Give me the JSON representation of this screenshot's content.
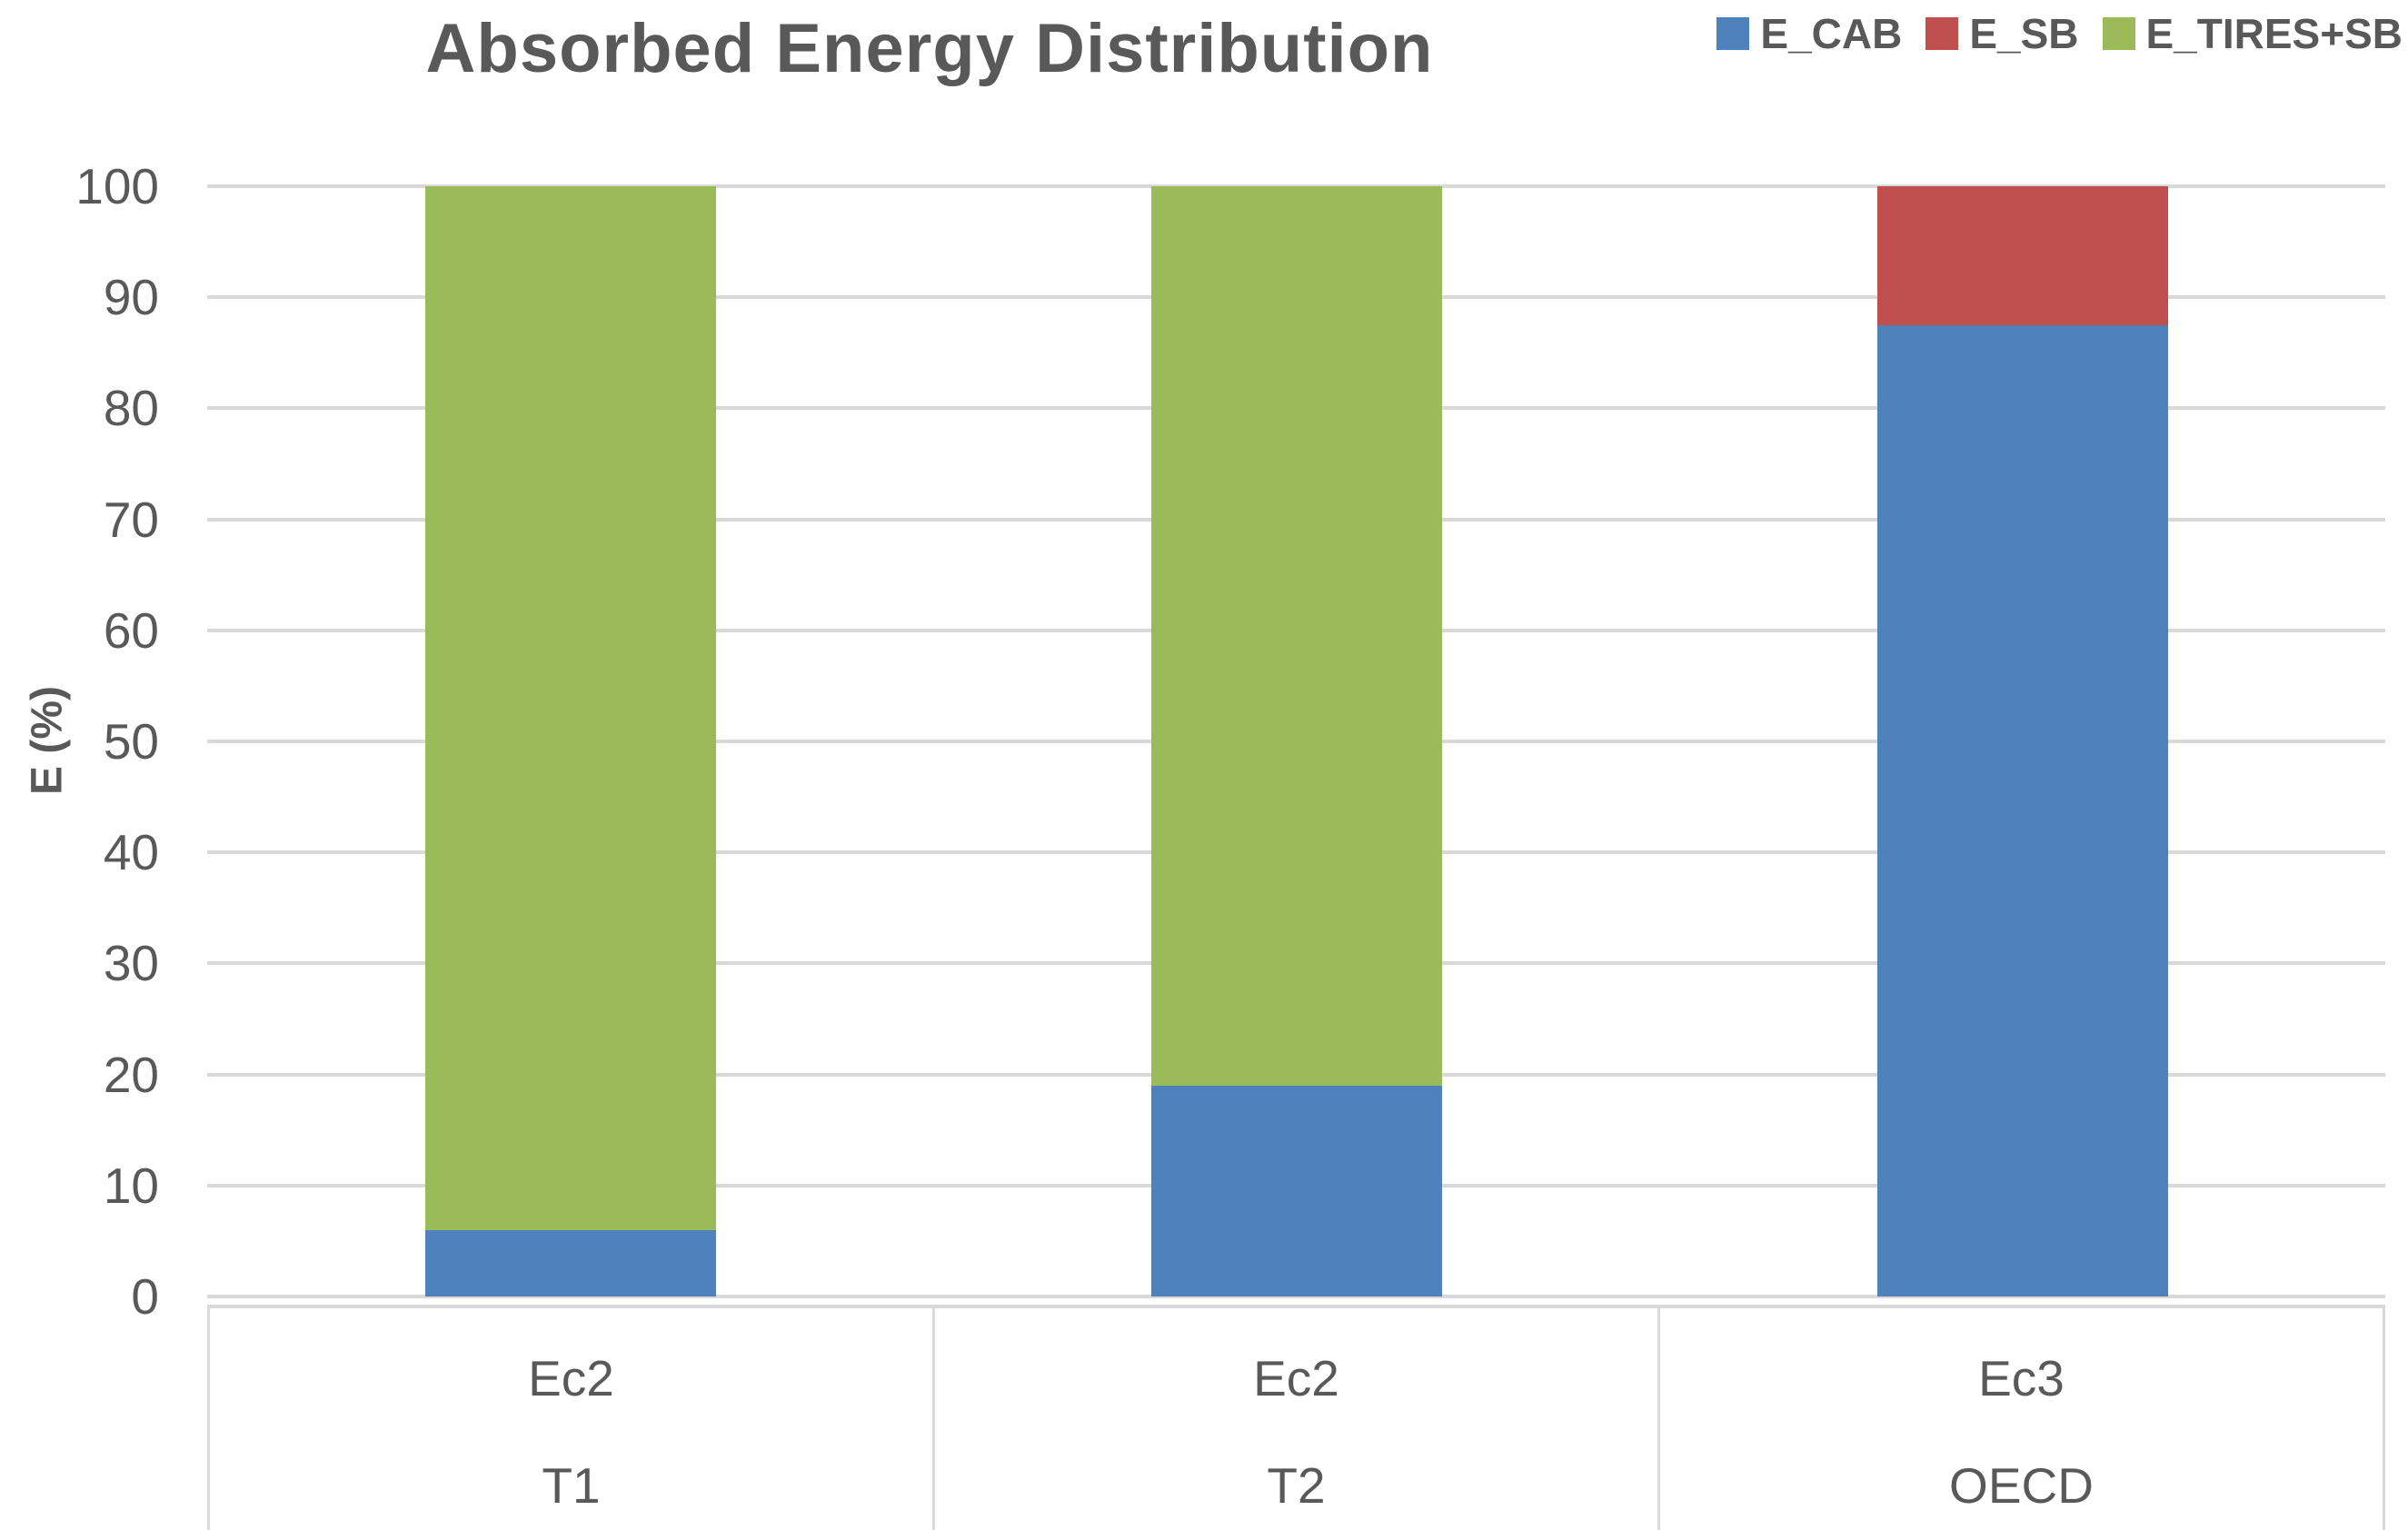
{
  "chart_data": {
    "type": "bar",
    "stacked": true,
    "title": "Absorbed Energy Distribution",
    "ylabel": "E (%)",
    "xlabel": "",
    "ylim": [
      0,
      100
    ],
    "ytick_interval": 10,
    "yticks": [
      0,
      10,
      20,
      30,
      40,
      50,
      60,
      70,
      80,
      90,
      100
    ],
    "grid": true,
    "legend_position": "top-right",
    "categories": [
      {
        "group": "Ec2",
        "label": "T1"
      },
      {
        "group": "Ec2",
        "label": "T2"
      },
      {
        "group": "Ec3",
        "label": "OECD"
      }
    ],
    "series": [
      {
        "name": "E_CAB",
        "color": "#4F81BD",
        "values": [
          6,
          19,
          87.5
        ]
      },
      {
        "name": "E_SB",
        "color": "#C0504D",
        "values": [
          0,
          0,
          12.5
        ]
      },
      {
        "name": "E_TIRES+SB",
        "color": "#9BBB59",
        "values": [
          94,
          81,
          0
        ]
      }
    ],
    "colors": {
      "gridline": "#D9D9D9",
      "text": "#595959",
      "background": "#FFFFFF"
    }
  }
}
